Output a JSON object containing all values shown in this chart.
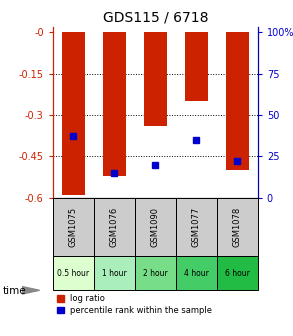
{
  "title": "GDS115 / 6718",
  "samples": [
    "GSM1075",
    "GSM1076",
    "GSM1090",
    "GSM1077",
    "GSM1078"
  ],
  "time_labels": [
    "0.5 hour",
    "1 hour",
    "2 hour",
    "4 hour",
    "6 hour"
  ],
  "log_ratios": [
    -0.59,
    -0.52,
    -0.34,
    -0.25,
    -0.5
  ],
  "percentile_ranks": [
    37,
    15,
    20,
    35,
    22
  ],
  "ylim_left": [
    -0.6,
    0.0
  ],
  "ylim_right": [
    0,
    100
  ],
  "yticks_left": [
    0.0,
    -0.15,
    -0.3,
    -0.45,
    -0.6
  ],
  "yticks_right_vals": [
    0,
    25,
    50,
    75,
    100
  ],
  "yticks_right_labels": [
    "0",
    "25",
    "50",
    "75",
    "100%"
  ],
  "bar_color": "#cc2200",
  "dot_color": "#0000cc",
  "left_tick_color": "#cc2200",
  "right_tick_color": "#0000cc",
  "title_fontsize": 10,
  "time_bg_colors": [
    "#ddffd0",
    "#aaeebb",
    "#77dd88",
    "#44cc66",
    "#22bb44"
  ],
  "sample_bg_color": "#cccccc",
  "bar_width": 0.55,
  "legend_log_ratio_color": "#cc2200",
  "legend_percentile_color": "#0000cc",
  "gridline_vals": [
    -0.15,
    -0.3,
    -0.45
  ]
}
